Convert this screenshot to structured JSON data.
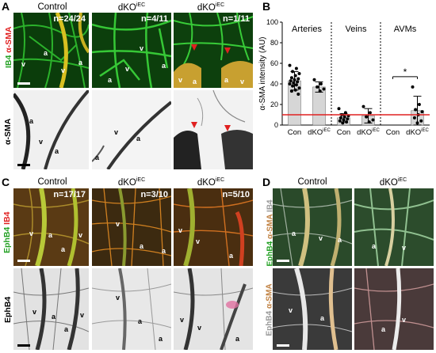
{
  "panelA": {
    "label": "A",
    "columns": [
      "Control",
      "dKO",
      "dKO"
    ],
    "col_superscripts": [
      "",
      "iEC",
      "iEC"
    ],
    "counts": [
      "n=24/24",
      "n=4/11",
      "n=1/11"
    ],
    "row_labels": {
      "top_ib4": "IB4",
      "top_sma": "α-SMA",
      "bottom": "α-SMA"
    },
    "vessel_letters": [
      "a",
      "v",
      "a",
      "v",
      "a",
      "v",
      "a",
      "v",
      "a",
      "a",
      "v",
      "a",
      "v",
      "a",
      "a",
      "v",
      "a",
      "v",
      "a"
    ]
  },
  "panelB": {
    "label": "B"
  },
  "panelC": {
    "label": "C",
    "columns": [
      "Control",
      "dKO",
      "dKO"
    ],
    "col_superscripts": [
      "",
      "iEC",
      "iEC"
    ],
    "counts": [
      "n=17/17",
      "n=3/10",
      "n=5/10"
    ],
    "row_labels": {
      "top_ephb4": "EphB4",
      "top_ib4": "IB4",
      "bottom": "EphB4"
    }
  },
  "panelD": {
    "label": "D",
    "columns": [
      "Control",
      "dKO"
    ],
    "col_superscripts": [
      "",
      "iEC"
    ],
    "row_labels": {
      "top_1": "EphB4",
      "top_2": "α-SMA",
      "top_3": "IB4",
      "bottom_1": "EphB4",
      "bottom_2": "α-SMA"
    }
  },
  "chart_data": {
    "type": "scatter",
    "ylabel": "α-SMA intensity (AU)",
    "ylim": [
      0,
      100
    ],
    "yticks": [
      0,
      20,
      40,
      60,
      80,
      100
    ],
    "groups": [
      "Arteries",
      "Veins",
      "AVMs"
    ],
    "categories": [
      "Con",
      "dKO",
      "Con",
      "dKO",
      "Con",
      "dKO"
    ],
    "category_superscripts": [
      "",
      "iEC",
      "",
      "iEC",
      "",
      "iEC"
    ],
    "bars": [
      {
        "group": "Arteries",
        "category": "Con",
        "mean": 43,
        "sd": 9,
        "points": [
          58,
          55,
          52,
          50,
          48,
          46,
          45,
          44,
          43,
          42,
          41,
          40,
          39,
          38,
          36,
          34,
          33,
          30
        ]
      },
      {
        "group": "Arteries",
        "category": "dKO",
        "mean": 37,
        "sd": 5,
        "points": [
          44,
          40,
          37,
          35,
          33
        ]
      },
      {
        "group": "Veins",
        "category": "Con",
        "mean": 7,
        "sd": 4,
        "points": [
          16,
          12,
          10,
          9,
          8,
          7,
          6,
          5,
          4,
          3,
          2
        ]
      },
      {
        "group": "Veins",
        "category": "dKO",
        "mean": 9,
        "sd": 7,
        "points": [
          18,
          12,
          8,
          5,
          3
        ]
      },
      {
        "group": "AVMs",
        "category": "Con",
        "mean": 0,
        "sd": 0,
        "points": []
      },
      {
        "group": "AVMs",
        "category": "dKO",
        "mean": 14,
        "sd": 14,
        "points": [
          37,
          20,
          15,
          13,
          10,
          7,
          4,
          2
        ]
      }
    ],
    "reference_line": 10,
    "significance": "*",
    "colors": {
      "bar": "#d6d6d6",
      "reference": "#e02020"
    }
  }
}
